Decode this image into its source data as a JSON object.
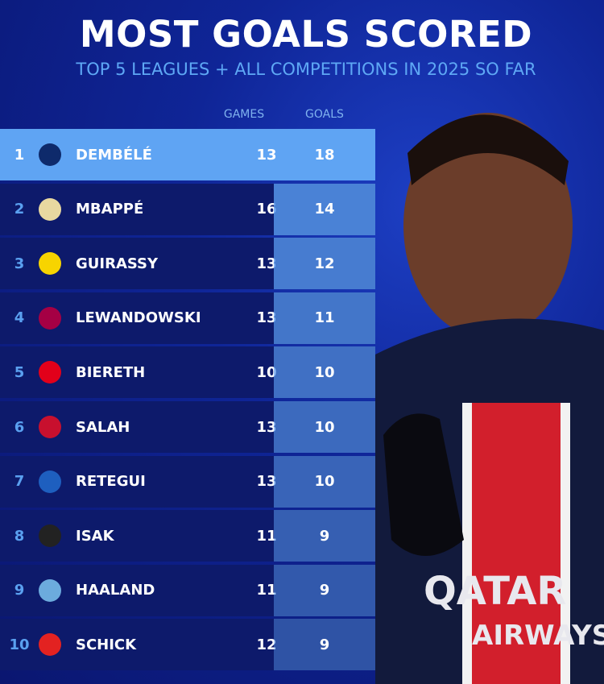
{
  "title": "MOST GOALS SCORED",
  "subtitle": "TOP 5 LEAGUES + ALL COMPETITIONS IN 2025 SO FAR",
  "colors": {
    "highlight": "#5fa4f3",
    "row": "#0d1a6b",
    "rank": "#5aa0f0",
    "subtitle": "#5ea8f5"
  },
  "chart_data": {
    "type": "table",
    "columns": [
      "GAMES",
      "GOALS"
    ],
    "rows": [
      {
        "rank": "1",
        "club_icon": "psg-crest",
        "name": "DEMBÉLÉ",
        "games": 13,
        "goals": 18
      },
      {
        "rank": "2",
        "club_icon": "real-madrid-crest",
        "name": "MBAPPÉ",
        "games": 16,
        "goals": 14
      },
      {
        "rank": "3",
        "club_icon": "dortmund-crest",
        "name": "GUIRASSY",
        "games": 13,
        "goals": 12
      },
      {
        "rank": "4",
        "club_icon": "barcelona-crest",
        "name": "LEWANDOWSKI",
        "games": 13,
        "goals": 11
      },
      {
        "rank": "5",
        "club_icon": "monaco-crest",
        "name": "BIERETH",
        "games": 10,
        "goals": 10
      },
      {
        "rank": "6",
        "club_icon": "liverpool-crest",
        "name": "SALAH",
        "games": 13,
        "goals": 10
      },
      {
        "rank": "7",
        "club_icon": "atalanta-crest",
        "name": "RETEGUI",
        "games": 13,
        "goals": 10
      },
      {
        "rank": "8",
        "club_icon": "newcastle-crest",
        "name": "ISAK",
        "games": 11,
        "goals": 9
      },
      {
        "rank": "9",
        "club_icon": "man-city-crest",
        "name": "HAALAND",
        "games": 11,
        "goals": 9
      },
      {
        "rank": "10",
        "club_icon": "leverkusen-crest",
        "name": "SCHICK",
        "games": 12,
        "goals": 9
      }
    ]
  }
}
